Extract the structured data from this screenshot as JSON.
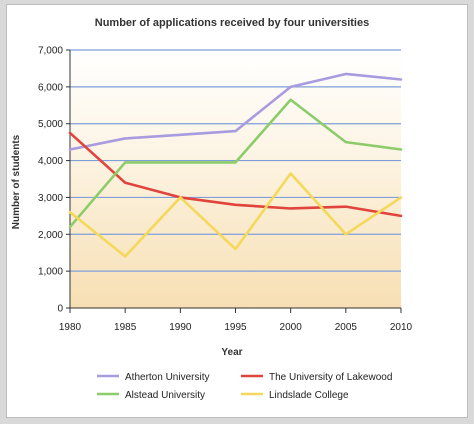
{
  "chart_data": {
    "type": "line",
    "title": "Number of applications received by four universities",
    "xlabel": "Year",
    "ylabel": "Number of students",
    "x": [
      1980,
      1985,
      1990,
      1995,
      2000,
      2005,
      2010
    ],
    "x_tick_labels": [
      "1980",
      "1985",
      "1990",
      "1995",
      "2000",
      "2005",
      "2010"
    ],
    "y_tick_labels": [
      "0",
      "1,000",
      "2,000",
      "3,000",
      "4,000",
      "5,000",
      "6,000",
      "7,000"
    ],
    "y_ticks": [
      0,
      1000,
      2000,
      3000,
      4000,
      5000,
      6000,
      7000
    ],
    "xlim": [
      1980,
      2010
    ],
    "ylim": [
      0,
      7000
    ],
    "grid": "horizontal",
    "legend_position": "bottom",
    "series": [
      {
        "name": "Atherton University",
        "color": "#a99be0",
        "values": [
          4300,
          4600,
          4700,
          4800,
          6000,
          6350,
          6200
        ]
      },
      {
        "name": "The University of Lakewood",
        "color": "#e0443c",
        "values": [
          4750,
          3400,
          3000,
          2800,
          2700,
          2750,
          2500
        ]
      },
      {
        "name": "Alstead University",
        "color": "#8ccc6a",
        "values": [
          2200,
          3950,
          3950,
          3950,
          5650,
          4500,
          4300
        ]
      },
      {
        "name": "Lindslade College",
        "color": "#f4d85a",
        "values": [
          2600,
          1400,
          3000,
          1600,
          3650,
          2000,
          3000
        ]
      }
    ]
  }
}
